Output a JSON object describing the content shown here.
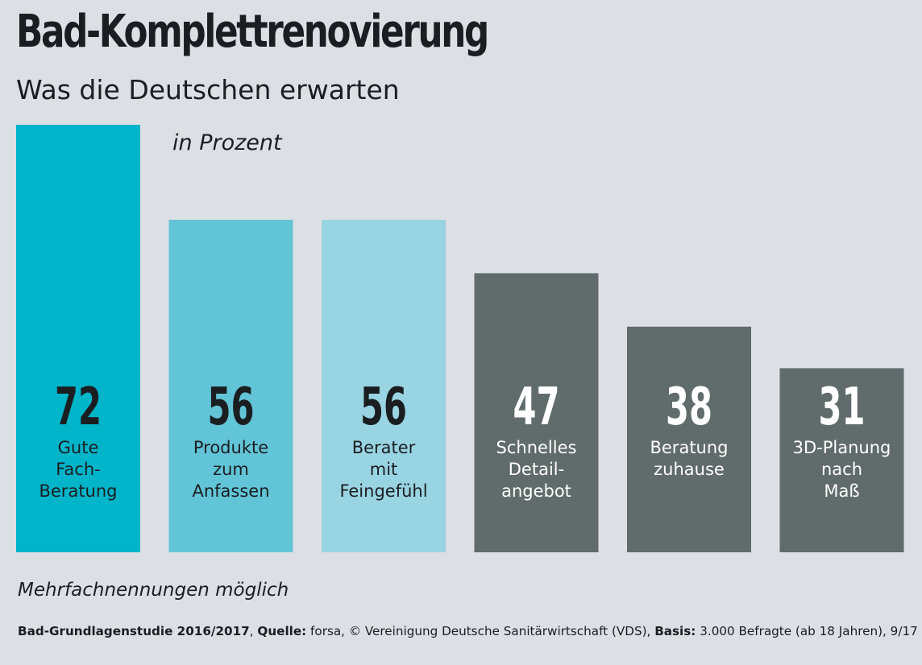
{
  "chart_data": {
    "type": "bar",
    "title": "Bad-Komplettrenovierung",
    "subtitle": "Was die Deutschen erwarten",
    "unit_label": "in Prozent",
    "categories": [
      [
        "Gute",
        "Fach-",
        "Beratung"
      ],
      [
        "Produkte",
        "zum",
        "Anfassen"
      ],
      [
        "Berater",
        "mit",
        "Feingefühl"
      ],
      [
        "Schnelles",
        "Detail-",
        "angebot"
      ],
      [
        "Beratung",
        "zuhause"
      ],
      [
        "3D-Planung",
        "nach",
        "Maß"
      ]
    ],
    "values": [
      72,
      56,
      56,
      47,
      38,
      31
    ],
    "ylim": [
      0,
      72
    ],
    "grid": false,
    "legend": "none"
  },
  "colors": {
    "background": "#dcdfe3",
    "text": "#1b1e21",
    "bar_1": "#00b4c9",
    "bar_2": "#62c4d7",
    "bar_3": "#99d4e2",
    "bar_other": "#606b6c",
    "label_dark": "#1b1e21",
    "label_light": "#ffffff"
  },
  "footer": {
    "note": "Mehrfachnennungen möglich",
    "study_label": "Bad-Grundlagenstudie 2016/2017",
    "sep1": ", ",
    "source_label": "Quelle:",
    "source_value": " forsa, © Vereinigung Deutsche Sanitärwirtschaft (VDS), ",
    "basis_label": "Basis:",
    "basis_value": " 3.000 Befragte (ab 18 Jahren), 9/17"
  }
}
